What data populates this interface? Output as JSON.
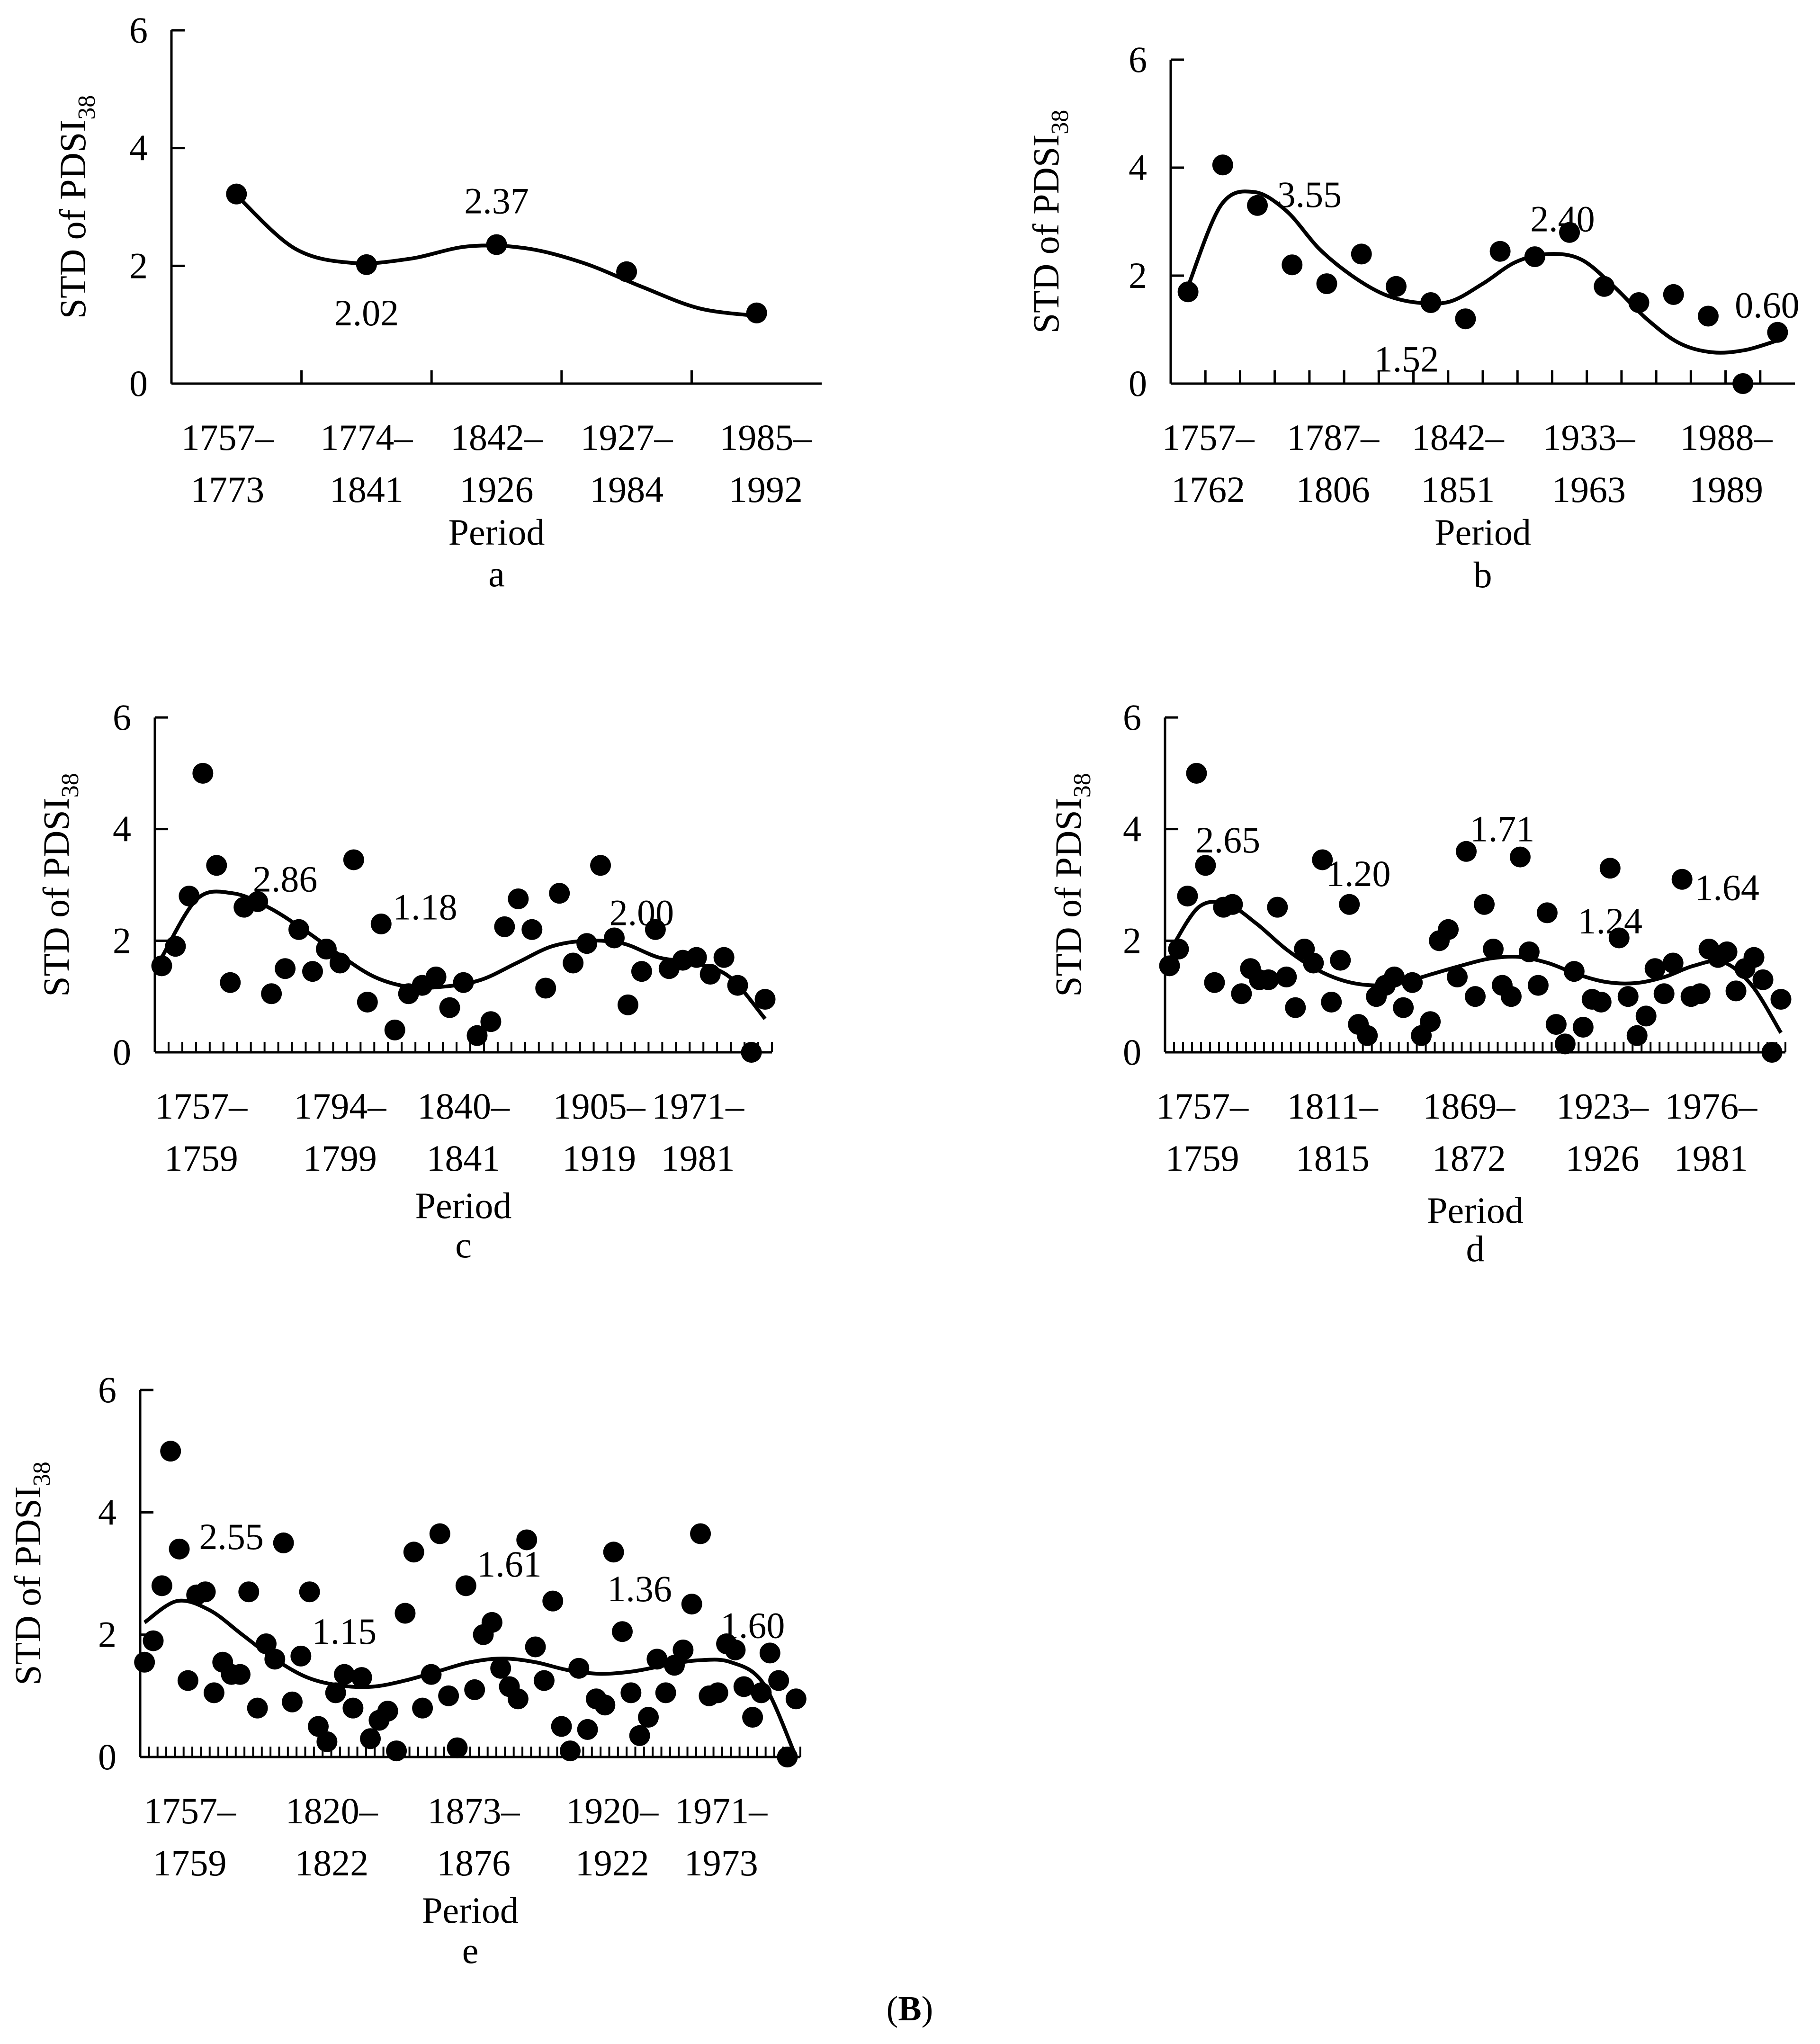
{
  "figure_caption": {
    "open": "(",
    "label": "B",
    "close": ")"
  },
  "chart_data": [
    {
      "id": "a",
      "panel_label": "a",
      "type": "scatter",
      "ylabel": "STD of PDSI",
      "ylabel_sub": "38",
      "xlabel": "Period",
      "ylim": [
        0,
        6
      ],
      "yticks": [
        0,
        2,
        4,
        6
      ],
      "categories": [
        [
          "1757–",
          "1773"
        ],
        [
          "1774–",
          "1841"
        ],
        [
          "1842–",
          "1926"
        ],
        [
          "1927–",
          "1984"
        ],
        [
          "1985–",
          "1992"
        ]
      ],
      "values": [
        3.22,
        2.02,
        2.36,
        1.9,
        1.2
      ],
      "trend": [
        3.2,
        2.3,
        2.05,
        2.12,
        2.33,
        2.3,
        2.05,
        1.65,
        1.28,
        1.15
      ],
      "annotations": [
        {
          "text": "2.02",
          "i": 1.0,
          "y": 1.2
        },
        {
          "text": "2.37",
          "i": 2.0,
          "y": 3.1
        }
      ]
    },
    {
      "id": "b",
      "panel_label": "b",
      "type": "scatter",
      "ylabel": "STD of PDSI",
      "ylabel_sub": "38",
      "xlabel": "Period",
      "ylim": [
        0,
        6
      ],
      "yticks": [
        0,
        2,
        4,
        6
      ],
      "categories": [
        [
          "1757–",
          "1762"
        ],
        [
          "1787–",
          "1806"
        ],
        [
          "1842–",
          "1851"
        ],
        [
          "1933–",
          "1963"
        ],
        [
          "1988–",
          "1989"
        ]
      ],
      "values": [
        1.7,
        4.05,
        3.3,
        2.2,
        1.85,
        2.4,
        1.8,
        1.5,
        1.2,
        2.45,
        2.35,
        2.8,
        1.8,
        1.5,
        1.65,
        1.25,
        0.0,
        0.95
      ],
      "trend": [
        1.8,
        3.3,
        3.55,
        3.2,
        2.5,
        2.0,
        1.65,
        1.5,
        1.52,
        1.85,
        2.25,
        2.4,
        2.3,
        1.8,
        1.2,
        0.75,
        0.58,
        0.62,
        0.8
      ],
      "annotations": [
        {
          "text": "3.55",
          "i": 3.5,
          "y": 3.5
        },
        {
          "text": "1.52",
          "i": 6.3,
          "y": 0.45
        },
        {
          "text": "2.40",
          "i": 10.8,
          "y": 3.05
        },
        {
          "text": "0.60",
          "i": 16.7,
          "y": 1.45
        }
      ]
    },
    {
      "id": "c",
      "panel_label": "c",
      "type": "scatter",
      "ylabel": "STD of PDSI",
      "ylabel_sub": "38",
      "xlabel": "Period",
      "ylim": [
        0,
        6
      ],
      "yticks": [
        0,
        2,
        4,
        6
      ],
      "categories": [
        [
          "1757–",
          "1759"
        ],
        [
          "1794–",
          "1799"
        ],
        [
          "1840–",
          "1841"
        ],
        [
          "1905–",
          "1919"
        ],
        [
          "1971–",
          "1981"
        ]
      ],
      "values": [
        1.55,
        1.9,
        2.8,
        5.0,
        3.35,
        1.25,
        2.6,
        2.7,
        1.05,
        1.5,
        2.2,
        1.45,
        1.85,
        1.6,
        3.45,
        0.9,
        2.3,
        0.4,
        1.05,
        1.2,
        1.35,
        0.8,
        1.25,
        0.3,
        0.55,
        2.25,
        2.75,
        2.2,
        1.15,
        2.85,
        1.6,
        1.95,
        3.35,
        2.05,
        0.85,
        1.45,
        2.2,
        1.5,
        1.65,
        1.7,
        1.4,
        1.7,
        1.2,
        0.0,
        0.95
      ],
      "trend": [
        1.7,
        2.75,
        2.85,
        2.6,
        2.2,
        1.75,
        1.35,
        1.17,
        1.18,
        1.3,
        1.6,
        1.9,
        2.0,
        1.95,
        1.7,
        1.6,
        1.35,
        0.6
      ],
      "annotations": [
        {
          "text": "2.86",
          "i": 9.0,
          "y": 3.1
        },
        {
          "text": "1.18",
          "i": 19.2,
          "y": 2.6
        },
        {
          "text": "2.00",
          "i": 35.0,
          "y": 2.5
        }
      ]
    },
    {
      "id": "d",
      "panel_label": "d",
      "type": "scatter",
      "ylabel": "STD of PDSI",
      "ylabel_sub": "38",
      "xlabel": "Period",
      "ylim": [
        0,
        6
      ],
      "yticks": [
        0,
        2,
        4,
        6
      ],
      "categories": [
        [
          "1757–",
          "1759"
        ],
        [
          "1811–",
          "1815"
        ],
        [
          "1869–",
          "1872"
        ],
        [
          "1923–",
          "1926"
        ],
        [
          "1976–",
          "1981"
        ]
      ],
      "values": [
        1.55,
        1.85,
        2.8,
        5.0,
        3.35,
        1.25,
        2.6,
        2.65,
        1.05,
        1.5,
        1.3,
        1.3,
        2.6,
        1.35,
        0.8,
        1.85,
        1.6,
        3.45,
        0.9,
        1.65,
        2.65,
        0.5,
        0.3,
        1.0,
        1.2,
        1.35,
        0.8,
        1.25,
        0.3,
        0.55,
        2.0,
        2.2,
        1.35,
        3.6,
        1.0,
        2.65,
        1.85,
        1.2,
        1.0,
        3.5,
        1.8,
        1.2,
        2.5,
        0.5,
        0.15,
        1.45,
        0.45,
        0.95,
        0.9,
        3.3,
        2.05,
        1.0,
        0.3,
        0.65,
        1.5,
        1.05,
        1.6,
        3.1,
        1.0,
        1.05,
        1.85,
        1.7,
        1.8,
        1.1,
        1.5,
        1.7,
        1.3,
        0.0,
        0.95
      ],
      "trend": [
        1.8,
        2.6,
        2.65,
        2.3,
        1.85,
        1.5,
        1.28,
        1.2,
        1.25,
        1.4,
        1.55,
        1.68,
        1.71,
        1.6,
        1.4,
        1.26,
        1.24,
        1.35,
        1.55,
        1.62,
        1.2,
        0.35
      ],
      "annotations": [
        {
          "text": "2.65",
          "i": 6.5,
          "y": 3.8
        },
        {
          "text": "1.20",
          "i": 21.0,
          "y": 3.2
        },
        {
          "text": "1.71",
          "i": 37.0,
          "y": 4.0
        },
        {
          "text": "1.24",
          "i": 49.0,
          "y": 2.35
        },
        {
          "text": "1.64",
          "i": 62.0,
          "y": 2.95
        }
      ]
    },
    {
      "id": "e",
      "panel_label": "e",
      "type": "scatter",
      "ylabel": "STD of PDSI",
      "ylabel_sub": "38",
      "xlabel": "Period",
      "ylim": [
        0,
        6
      ],
      "yticks": [
        0,
        2,
        4,
        6
      ],
      "categories": [
        [
          "1757–",
          "1759"
        ],
        [
          "1820–",
          "1822"
        ],
        [
          "1873–",
          "1876"
        ],
        [
          "1920–",
          "1922"
        ],
        [
          "1971–",
          "1973"
        ]
      ],
      "values": [
        1.55,
        1.9,
        2.8,
        5.0,
        3.4,
        1.25,
        2.65,
        2.7,
        1.05,
        1.55,
        1.35,
        1.35,
        2.7,
        0.8,
        1.85,
        1.6,
        3.5,
        0.9,
        1.65,
        2.7,
        0.5,
        0.25,
        1.05,
        1.35,
        0.8,
        1.3,
        0.3,
        0.6,
        0.75,
        0.1,
        2.35,
        3.35,
        0.8,
        1.35,
        3.65,
        1.0,
        0.15,
        2.8,
        1.1,
        2.0,
        2.2,
        1.45,
        1.15,
        0.95,
        3.55,
        1.8,
        1.25,
        2.55,
        0.5,
        0.1,
        1.45,
        0.45,
        0.95,
        0.85,
        3.35,
        2.05,
        1.05,
        0.35,
        0.65,
        1.6,
        1.05,
        1.5,
        1.75,
        2.5,
        3.65,
        1.0,
        1.05,
        1.85,
        1.75,
        1.15,
        0.65,
        1.05,
        1.7,
        1.25,
        0.0,
        0.95
      ],
      "trend": [
        2.2,
        2.55,
        2.4,
        2.0,
        1.6,
        1.3,
        1.17,
        1.15,
        1.25,
        1.4,
        1.55,
        1.61,
        1.55,
        1.42,
        1.36,
        1.4,
        1.5,
        1.58,
        1.55,
        1.2,
        0.0
      ],
      "annotations": [
        {
          "text": "2.55",
          "i": 10.0,
          "y": 3.6
        },
        {
          "text": "1.15",
          "i": 23.0,
          "y": 2.05
        },
        {
          "text": "1.61",
          "i": 42.0,
          "y": 3.15
        },
        {
          "text": "1.36",
          "i": 57.0,
          "y": 2.75
        },
        {
          "text": "1.60",
          "i": 70.0,
          "y": 2.15
        }
      ]
    }
  ]
}
